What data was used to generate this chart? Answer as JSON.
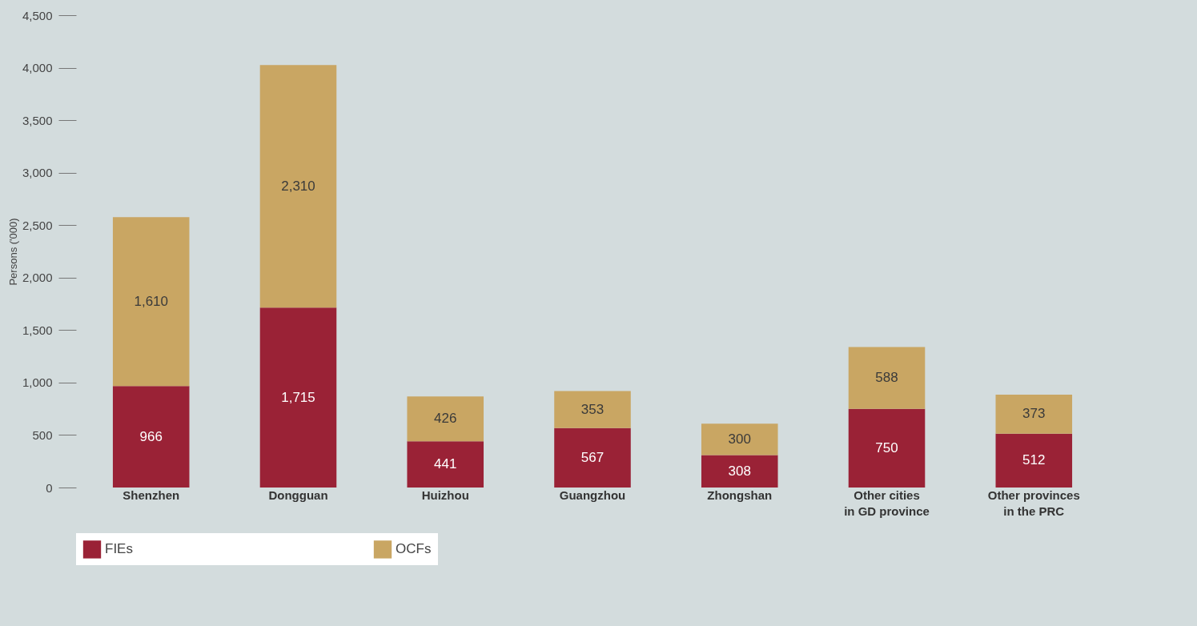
{
  "chart_data": {
    "type": "bar",
    "ylabel": "Persons ('000)",
    "stacked": true,
    "categories": [
      "Shenzhen",
      "Dongguan",
      "Huizhou",
      "Guangzhou",
      "Zhongshan",
      "Other cities\nin GD province",
      "Other provinces\nin the PRC"
    ],
    "series": [
      {
        "name": "FIEs",
        "color": "#9a2236",
        "values": [
          966,
          1715,
          441,
          567,
          308,
          750,
          512
        ],
        "value_labels": [
          "966",
          "1,715",
          "441",
          "567",
          "308",
          "750",
          "512"
        ]
      },
      {
        "name": "OCFs",
        "color": "#c9a663",
        "values": [
          1610,
          2310,
          426,
          353,
          300,
          588,
          373
        ],
        "value_labels": [
          "1,610",
          "2,310",
          "426",
          "353",
          "300",
          "588",
          "373"
        ]
      }
    ],
    "ylim": [
      0,
      4500
    ],
    "yticks": [
      0,
      {
        "value": 500,
        "label": "500"
      },
      {
        "value": 1000,
        "label": "1,000"
      },
      {
        "value": 1500,
        "label": "1,500"
      },
      {
        "value": 2000,
        "label": "2,000"
      },
      {
        "value": 2500,
        "label": "2,500"
      },
      {
        "value": 3000,
        "label": "3,000"
      },
      {
        "value": 3500,
        "label": "3,500"
      },
      {
        "value": 4000,
        "label": "4,000"
      },
      {
        "value": 4500,
        "label": "4,500"
      }
    ],
    "grid": false,
    "legend": "bottom"
  }
}
